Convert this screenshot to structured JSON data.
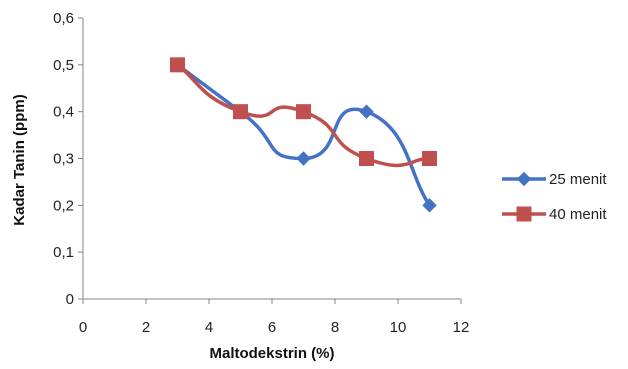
{
  "chart_data": {
    "type": "scatter",
    "title": "",
    "xlabel": "Maltodekstrin (%)",
    "ylabel": "Kadar Tanin (ppm)",
    "xlim": [
      0,
      12
    ],
    "ylim": [
      0,
      0.6
    ],
    "x_ticks": [
      0,
      2,
      4,
      6,
      8,
      10,
      12
    ],
    "x_tick_labels": [
      "0",
      "2",
      "4",
      "6",
      "8",
      "10",
      "12"
    ],
    "y_ticks": [
      0,
      0.1,
      0.2,
      0.3,
      0.4,
      0.5,
      0.6
    ],
    "y_tick_labels": [
      "0",
      "0,1",
      "0,2",
      "0,3",
      "0,4",
      "0,5",
      "0,6"
    ],
    "grid": false,
    "smooth_lines": true,
    "legend_position": "right",
    "series": [
      {
        "name": "25 menit",
        "marker": "diamond",
        "color": "#4472C4",
        "x": [
          3,
          5,
          7,
          9,
          11
        ],
        "y": [
          0.5,
          0.4,
          0.3,
          0.4,
          0.2
        ]
      },
      {
        "name": "40 menit",
        "marker": "square",
        "color": "#C0504D",
        "x": [
          3,
          5,
          7,
          9,
          11
        ],
        "y": [
          0.5,
          0.4,
          0.4,
          0.3,
          0.3
        ]
      }
    ]
  }
}
